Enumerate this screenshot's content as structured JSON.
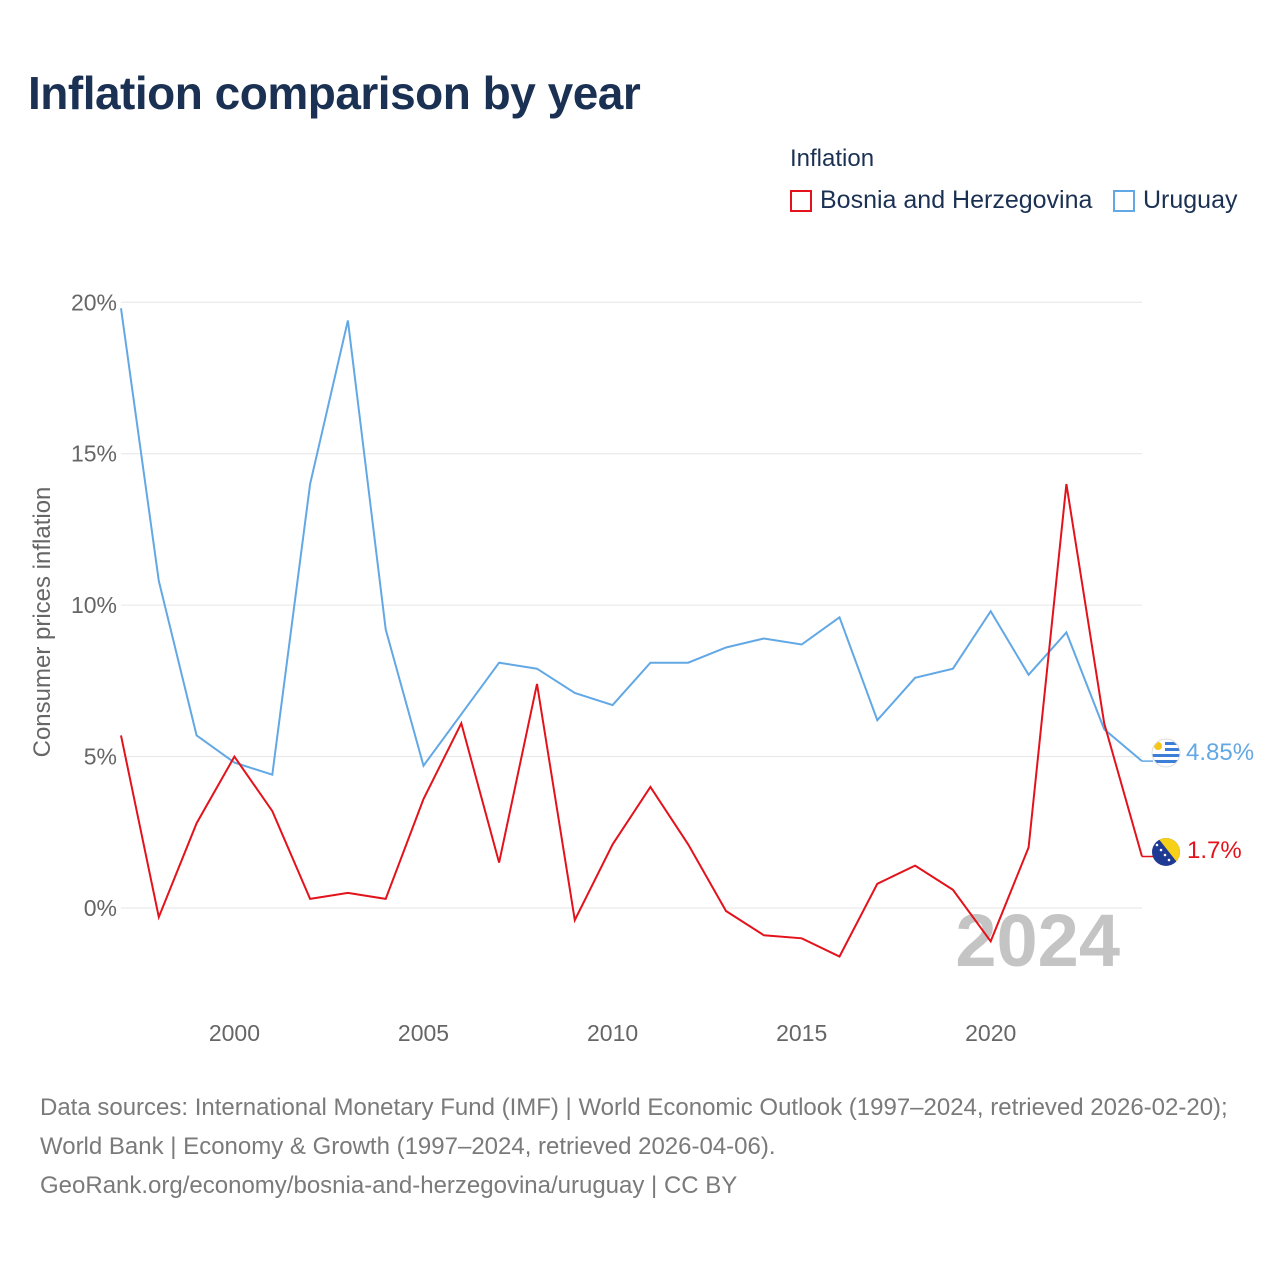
{
  "title": "Inflation comparison by year",
  "legend": {
    "title": "Inflation",
    "items": [
      {
        "label": "Bosnia and Herzegovina",
        "color": "#e3121b"
      },
      {
        "label": "Uruguay",
        "color": "#62a8e5"
      }
    ]
  },
  "chart_data": {
    "type": "line",
    "title": "Inflation comparison by year",
    "xlabel": "",
    "ylabel": "Consumer prices inflation",
    "xlim": [
      1997,
      2024
    ],
    "ylim": [
      -3.5,
      21
    ],
    "x_ticks": [
      2000,
      2005,
      2010,
      2015,
      2020
    ],
    "y_ticks": [
      0,
      5,
      10,
      15,
      20
    ],
    "y_tick_labels": [
      "0%",
      "5%",
      "10%",
      "15%",
      "20%"
    ],
    "grid": true,
    "year_watermark": "2024",
    "x": [
      1997,
      1998,
      1999,
      2000,
      2001,
      2002,
      2003,
      2004,
      2005,
      2006,
      2007,
      2008,
      2009,
      2010,
      2011,
      2012,
      2013,
      2014,
      2015,
      2016,
      2017,
      2018,
      2019,
      2020,
      2021,
      2022,
      2023,
      2024
    ],
    "series": [
      {
        "name": "Bosnia and Herzegovina",
        "color": "#e3121b",
        "end_label": "1.7%",
        "values": [
          5.7,
          -0.3,
          2.8,
          5.0,
          3.2,
          0.3,
          0.5,
          0.3,
          3.6,
          6.1,
          1.5,
          7.4,
          -0.4,
          2.1,
          4.0,
          2.1,
          -0.1,
          -0.9,
          -1.0,
          -1.6,
          0.8,
          1.4,
          0.6,
          -1.1,
          2.0,
          14.0,
          6.1,
          1.7
        ]
      },
      {
        "name": "Uruguay",
        "color": "#62a8e5",
        "end_label": "4.85%",
        "values": [
          19.8,
          10.8,
          5.7,
          4.8,
          4.4,
          14.0,
          19.4,
          9.2,
          4.7,
          6.4,
          8.1,
          7.9,
          7.1,
          6.7,
          8.1,
          8.1,
          8.6,
          8.9,
          8.7,
          9.6,
          6.2,
          7.6,
          7.9,
          9.8,
          7.7,
          9.1,
          5.9,
          4.85
        ]
      }
    ]
  },
  "footer": {
    "sources_line1": "Data sources: International Monetary Fund (IMF) | World Economic Outlook (1997–2024, retrieved 2026-02-20); World Bank | Economy & Growth (1997–2024, retrieved 2026-04-06).",
    "sources_line2": "GeoRank.org/economy/bosnia-and-herzegovina/uruguay | CC BY"
  }
}
